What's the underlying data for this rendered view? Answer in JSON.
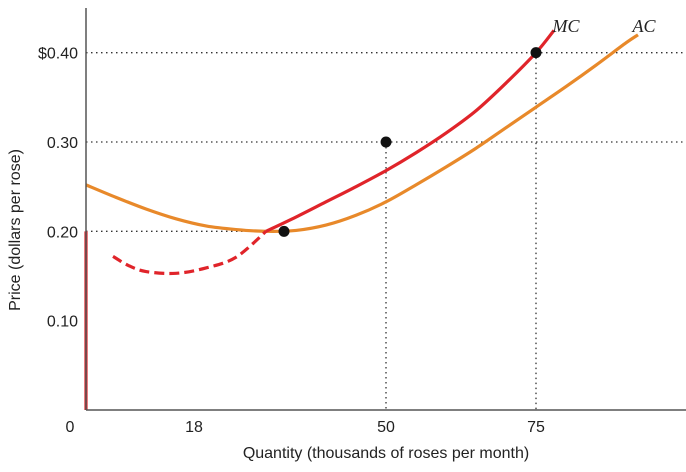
{
  "chart_data": {
    "type": "line",
    "title": "",
    "xlabel": "Quantity (thousands of roses per month)",
    "ylabel": "Price (dollars per rose)",
    "xlim": [
      0,
      100
    ],
    "ylim": [
      0,
      0.45
    ],
    "x_ticks": [
      {
        "value": 0,
        "label": "0"
      },
      {
        "value": 18,
        "label": "18"
      },
      {
        "value": 50,
        "label": "50"
      },
      {
        "value": 75,
        "label": "75"
      }
    ],
    "y_ticks": [
      {
        "value": 0.1,
        "label": "0.10"
      },
      {
        "value": 0.2,
        "label": "0.20"
      },
      {
        "value": 0.3,
        "label": "0.30"
      },
      {
        "value": 0.4,
        "label": "$0.40"
      }
    ],
    "grid": false,
    "guide_lines": [
      {
        "y": 0.4,
        "x_end": 100
      },
      {
        "y": 0.3,
        "x_end": 100
      },
      {
        "y": 0.2,
        "x_end": 33
      },
      {
        "x": 50,
        "y_end": 0.3
      },
      {
        "x": 75,
        "y_end": 0.4
      }
    ],
    "series": [
      {
        "name": "AC",
        "color": "#e8892a",
        "points": [
          [
            0,
            0.252
          ],
          [
            5,
            0.238
          ],
          [
            10,
            0.225
          ],
          [
            15,
            0.214
          ],
          [
            20,
            0.206
          ],
          [
            25,
            0.202
          ],
          [
            30,
            0.2
          ],
          [
            35,
            0.201
          ],
          [
            40,
            0.207
          ],
          [
            45,
            0.218
          ],
          [
            50,
            0.233
          ],
          [
            55,
            0.252
          ],
          [
            60,
            0.272
          ],
          [
            65,
            0.293
          ],
          [
            70,
            0.316
          ],
          [
            75,
            0.339
          ],
          [
            80,
            0.362
          ],
          [
            85,
            0.386
          ],
          [
            90,
            0.411
          ],
          [
            92,
            0.42
          ]
        ]
      },
      {
        "name": "MC",
        "color": "#e0242a",
        "points": [
          [
            30,
            0.2
          ],
          [
            35,
            0.216
          ],
          [
            40,
            0.233
          ],
          [
            45,
            0.25
          ],
          [
            50,
            0.268
          ],
          [
            55,
            0.288
          ],
          [
            60,
            0.31
          ],
          [
            65,
            0.335
          ],
          [
            70,
            0.366
          ],
          [
            75,
            0.4
          ],
          [
            78,
            0.425
          ]
        ]
      },
      {
        "name": "MC-dashed",
        "color": "#e0242a",
        "dashed": true,
        "points": [
          [
            4.5,
            0.172
          ],
          [
            7,
            0.162
          ],
          [
            10,
            0.155
          ],
          [
            15,
            0.153
          ],
          [
            20,
            0.159
          ],
          [
            25,
            0.171
          ],
          [
            30,
            0.2
          ]
        ]
      },
      {
        "name": "MC-vertical",
        "color": "#e0242a",
        "points": [
          [
            0,
            0.2
          ],
          [
            0,
            0.0
          ]
        ]
      }
    ],
    "points": [
      {
        "x": 33,
        "y": 0.2
      },
      {
        "x": 50,
        "y": 0.3
      },
      {
        "x": 75,
        "y": 0.4
      }
    ],
    "curve_labels": [
      {
        "text": "MC",
        "x": 80,
        "y": 0.43
      },
      {
        "text": "AC",
        "x": 93,
        "y": 0.43
      }
    ]
  }
}
